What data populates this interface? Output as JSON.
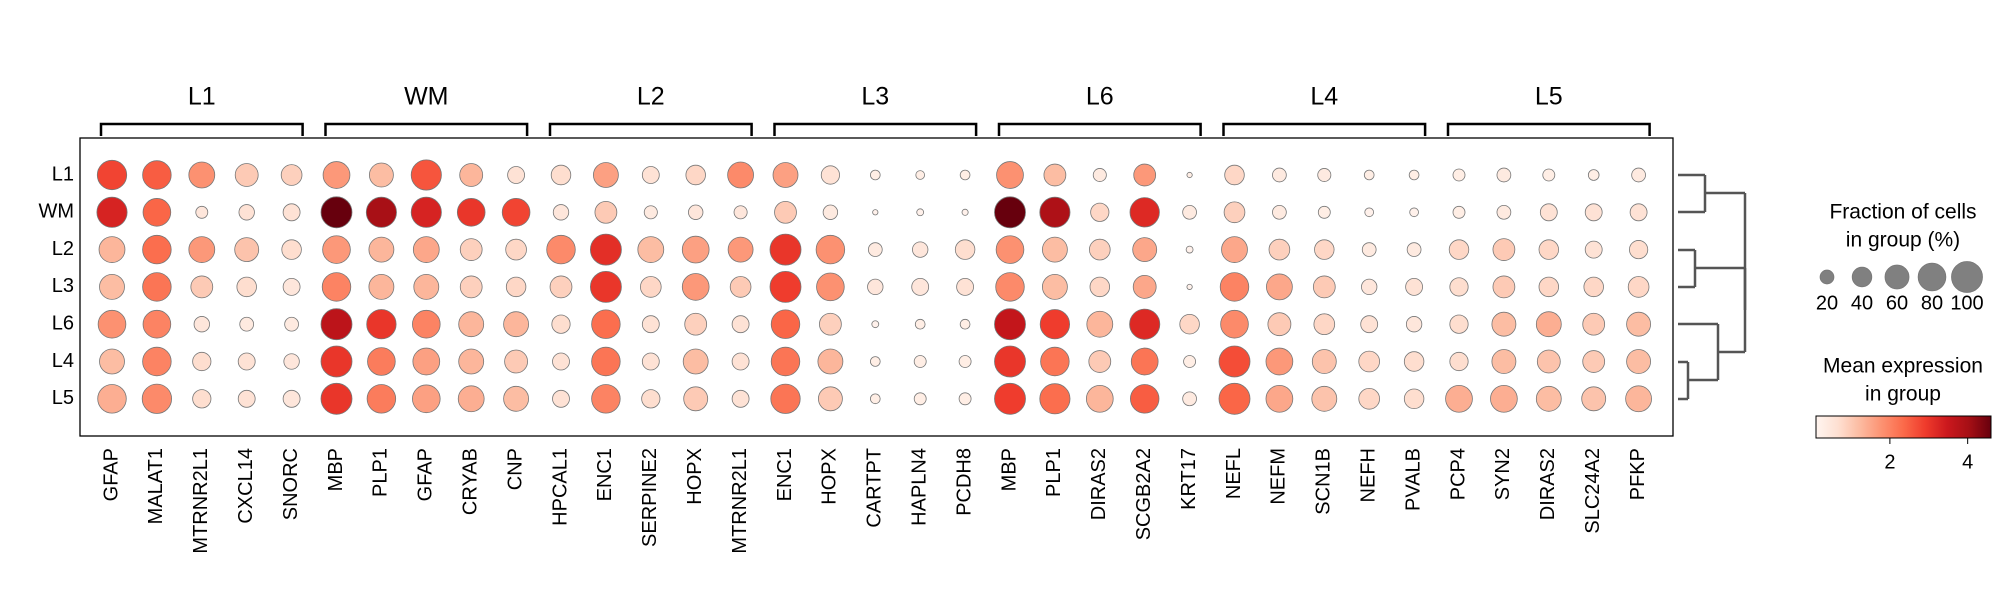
{
  "chart_data": {
    "type": "dotplot",
    "colormap": "Reds",
    "groups": [
      {
        "name": "L1",
        "genes": [
          "GFAP",
          "MALAT1",
          "MTRNR2L1",
          "CXCL14",
          "SNORC"
        ]
      },
      {
        "name": "WM",
        "genes": [
          "MBP",
          "PLP1",
          "GFAP",
          "CRYAB",
          "CNP"
        ]
      },
      {
        "name": "L2",
        "genes": [
          "HPCAL1",
          "ENC1",
          "SERPINE2",
          "HOPX",
          "MTRNR2L1"
        ]
      },
      {
        "name": "L3",
        "genes": [
          "ENC1",
          "HOPX",
          "CARTPT",
          "HAPLN4",
          "PCDH8"
        ]
      },
      {
        "name": "L6",
        "genes": [
          "MBP",
          "PLP1",
          "DIRAS2",
          "SCGB2A2",
          "KRT17"
        ]
      },
      {
        "name": "L4",
        "genes": [
          "NEFL",
          "NEFM",
          "SCN1B",
          "NEFH",
          "PVALB"
        ]
      },
      {
        "name": "L5",
        "genes": [
          "PCP4",
          "SYN2",
          "DIRAS2",
          "SLC24A2",
          "PFKP"
        ]
      }
    ],
    "series": [
      {
        "name": "L1",
        "sizes": [
          90,
          85,
          70,
          55,
          45,
          75,
          60,
          95,
          55,
          30,
          40,
          65,
          30,
          40,
          70,
          65,
          35,
          10,
          8,
          10,
          75,
          50,
          18,
          50,
          3,
          40,
          20,
          18,
          10,
          10,
          15,
          20,
          15,
          12,
          20
        ],
        "values": [
          2.8,
          2.5,
          1.8,
          1.0,
          0.9,
          1.7,
          1.2,
          2.6,
          1.3,
          0.6,
          0.7,
          1.6,
          0.6,
          0.8,
          1.9,
          1.6,
          0.6,
          0.3,
          0.3,
          0.3,
          1.8,
          1.2,
          0.4,
          1.7,
          0.3,
          0.8,
          0.4,
          0.4,
          0.3,
          0.3,
          0.3,
          0.4,
          0.3,
          0.3,
          0.4
        ]
      },
      {
        "name": "WM",
        "sizes": [
          95,
          80,
          15,
          25,
          30,
          100,
          95,
          95,
          80,
          80,
          25,
          50,
          18,
          22,
          18,
          50,
          22,
          3,
          5,
          4,
          100,
          95,
          35,
          90,
          20,
          45,
          20,
          15,
          8,
          8,
          15,
          20,
          30,
          30,
          30
        ],
        "values": [
          3.3,
          2.4,
          0.5,
          0.6,
          0.6,
          4.6,
          4.0,
          3.3,
          3.0,
          2.8,
          0.5,
          1.0,
          0.4,
          0.5,
          0.5,
          1.0,
          0.4,
          0.2,
          0.2,
          0.2,
          4.6,
          3.9,
          0.8,
          3.2,
          0.4,
          0.9,
          0.4,
          0.3,
          0.2,
          0.2,
          0.3,
          0.4,
          0.6,
          0.6,
          0.6
        ]
      },
      {
        "name": "L2",
        "sizes": [
          70,
          85,
          70,
          60,
          40,
          80,
          65,
          70,
          50,
          45,
          85,
          100,
          70,
          75,
          65,
          100,
          85,
          20,
          25,
          40,
          80,
          65,
          45,
          60,
          5,
          70,
          45,
          40,
          20,
          20,
          40,
          50,
          40,
          30,
          35
        ],
        "values": [
          1.3,
          2.3,
          1.7,
          1.1,
          0.7,
          1.7,
          1.3,
          1.5,
          0.9,
          0.8,
          1.9,
          3.1,
          1.2,
          1.6,
          1.7,
          3.0,
          1.8,
          0.4,
          0.5,
          0.7,
          1.8,
          1.2,
          0.9,
          1.5,
          0.2,
          1.5,
          0.9,
          0.8,
          0.4,
          0.4,
          0.8,
          1.0,
          0.8,
          0.6,
          0.7
        ]
      },
      {
        "name": "L3",
        "sizes": [
          65,
          85,
          50,
          40,
          30,
          85,
          65,
          65,
          50,
          40,
          50,
          100,
          45,
          75,
          45,
          100,
          80,
          25,
          30,
          30,
          85,
          65,
          40,
          55,
          3,
          85,
          70,
          50,
          25,
          30,
          35,
          50,
          40,
          40,
          45
        ],
        "values": [
          1.2,
          2.2,
          1.0,
          0.7,
          0.5,
          2.0,
          1.3,
          1.3,
          0.9,
          0.8,
          0.9,
          3.0,
          0.8,
          1.7,
          1.0,
          2.9,
          1.8,
          0.5,
          0.5,
          0.6,
          1.9,
          1.2,
          0.8,
          1.5,
          0.2,
          2.0,
          1.5,
          1.0,
          0.5,
          0.6,
          0.7,
          1.0,
          0.8,
          0.8,
          0.8
        ]
      },
      {
        "name": "L6",
        "sizes": [
          80,
          80,
          25,
          20,
          20,
          100,
          90,
          80,
          65,
          65,
          35,
          85,
          30,
          50,
          30,
          85,
          50,
          5,
          10,
          10,
          100,
          90,
          70,
          95,
          40,
          80,
          55,
          45,
          30,
          25,
          35,
          60,
          65,
          50,
          60
        ],
        "values": [
          1.8,
          2.0,
          0.5,
          0.4,
          0.4,
          3.7,
          3.0,
          2.0,
          1.3,
          1.3,
          0.7,
          2.3,
          0.6,
          0.9,
          0.6,
          2.4,
          0.9,
          0.2,
          0.3,
          0.3,
          3.6,
          2.9,
          1.3,
          3.2,
          0.8,
          1.9,
          1.0,
          0.8,
          0.6,
          0.5,
          0.7,
          1.2,
          1.4,
          1.0,
          1.2
        ]
      },
      {
        "name": "L4",
        "sizes": [
          65,
          85,
          35,
          30,
          25,
          100,
          80,
          75,
          65,
          55,
          30,
          85,
          30,
          65,
          30,
          85,
          65,
          10,
          15,
          15,
          100,
          85,
          50,
          75,
          15,
          100,
          75,
          60,
          45,
          40,
          35,
          60,
          55,
          50,
          60
        ],
        "values": [
          1.2,
          2.0,
          0.7,
          0.6,
          0.5,
          3.0,
          2.1,
          1.6,
          1.3,
          1.0,
          0.6,
          2.2,
          0.6,
          1.2,
          0.6,
          2.2,
          1.3,
          0.3,
          0.3,
          0.3,
          3.0,
          2.2,
          1.0,
          2.2,
          0.3,
          2.7,
          1.7,
          1.1,
          0.8,
          0.7,
          0.7,
          1.2,
          1.1,
          1.0,
          1.2
        ]
      },
      {
        "name": "L5",
        "sizes": [
          85,
          90,
          35,
          30,
          30,
          100,
          85,
          80,
          70,
          65,
          30,
          85,
          35,
          60,
          30,
          90,
          60,
          10,
          15,
          15,
          100,
          95,
          75,
          85,
          20,
          100,
          75,
          65,
          45,
          40,
          75,
          75,
          65,
          60,
          70
        ],
        "values": [
          1.4,
          1.9,
          0.7,
          0.6,
          0.5,
          3.0,
          2.1,
          1.6,
          1.4,
          1.2,
          0.6,
          2.0,
          0.7,
          1.0,
          0.6,
          2.2,
          1.0,
          0.3,
          0.3,
          0.3,
          2.9,
          2.3,
          1.3,
          2.5,
          0.4,
          2.4,
          1.5,
          1.1,
          0.8,
          0.7,
          1.4,
          1.4,
          1.2,
          1.1,
          1.3
        ]
      }
    ],
    "size_legend_title": [
      "Fraction of cells",
      "in group (%)"
    ],
    "size_lim": [
      0,
      100
    ],
    "size_ticks": [
      20,
      40,
      60,
      80,
      100
    ],
    "color_legend_title": [
      "Mean expression",
      "in group"
    ],
    "color_lim": [
      0.1,
      4.6
    ],
    "color_ticks": [
      2,
      4
    ]
  }
}
